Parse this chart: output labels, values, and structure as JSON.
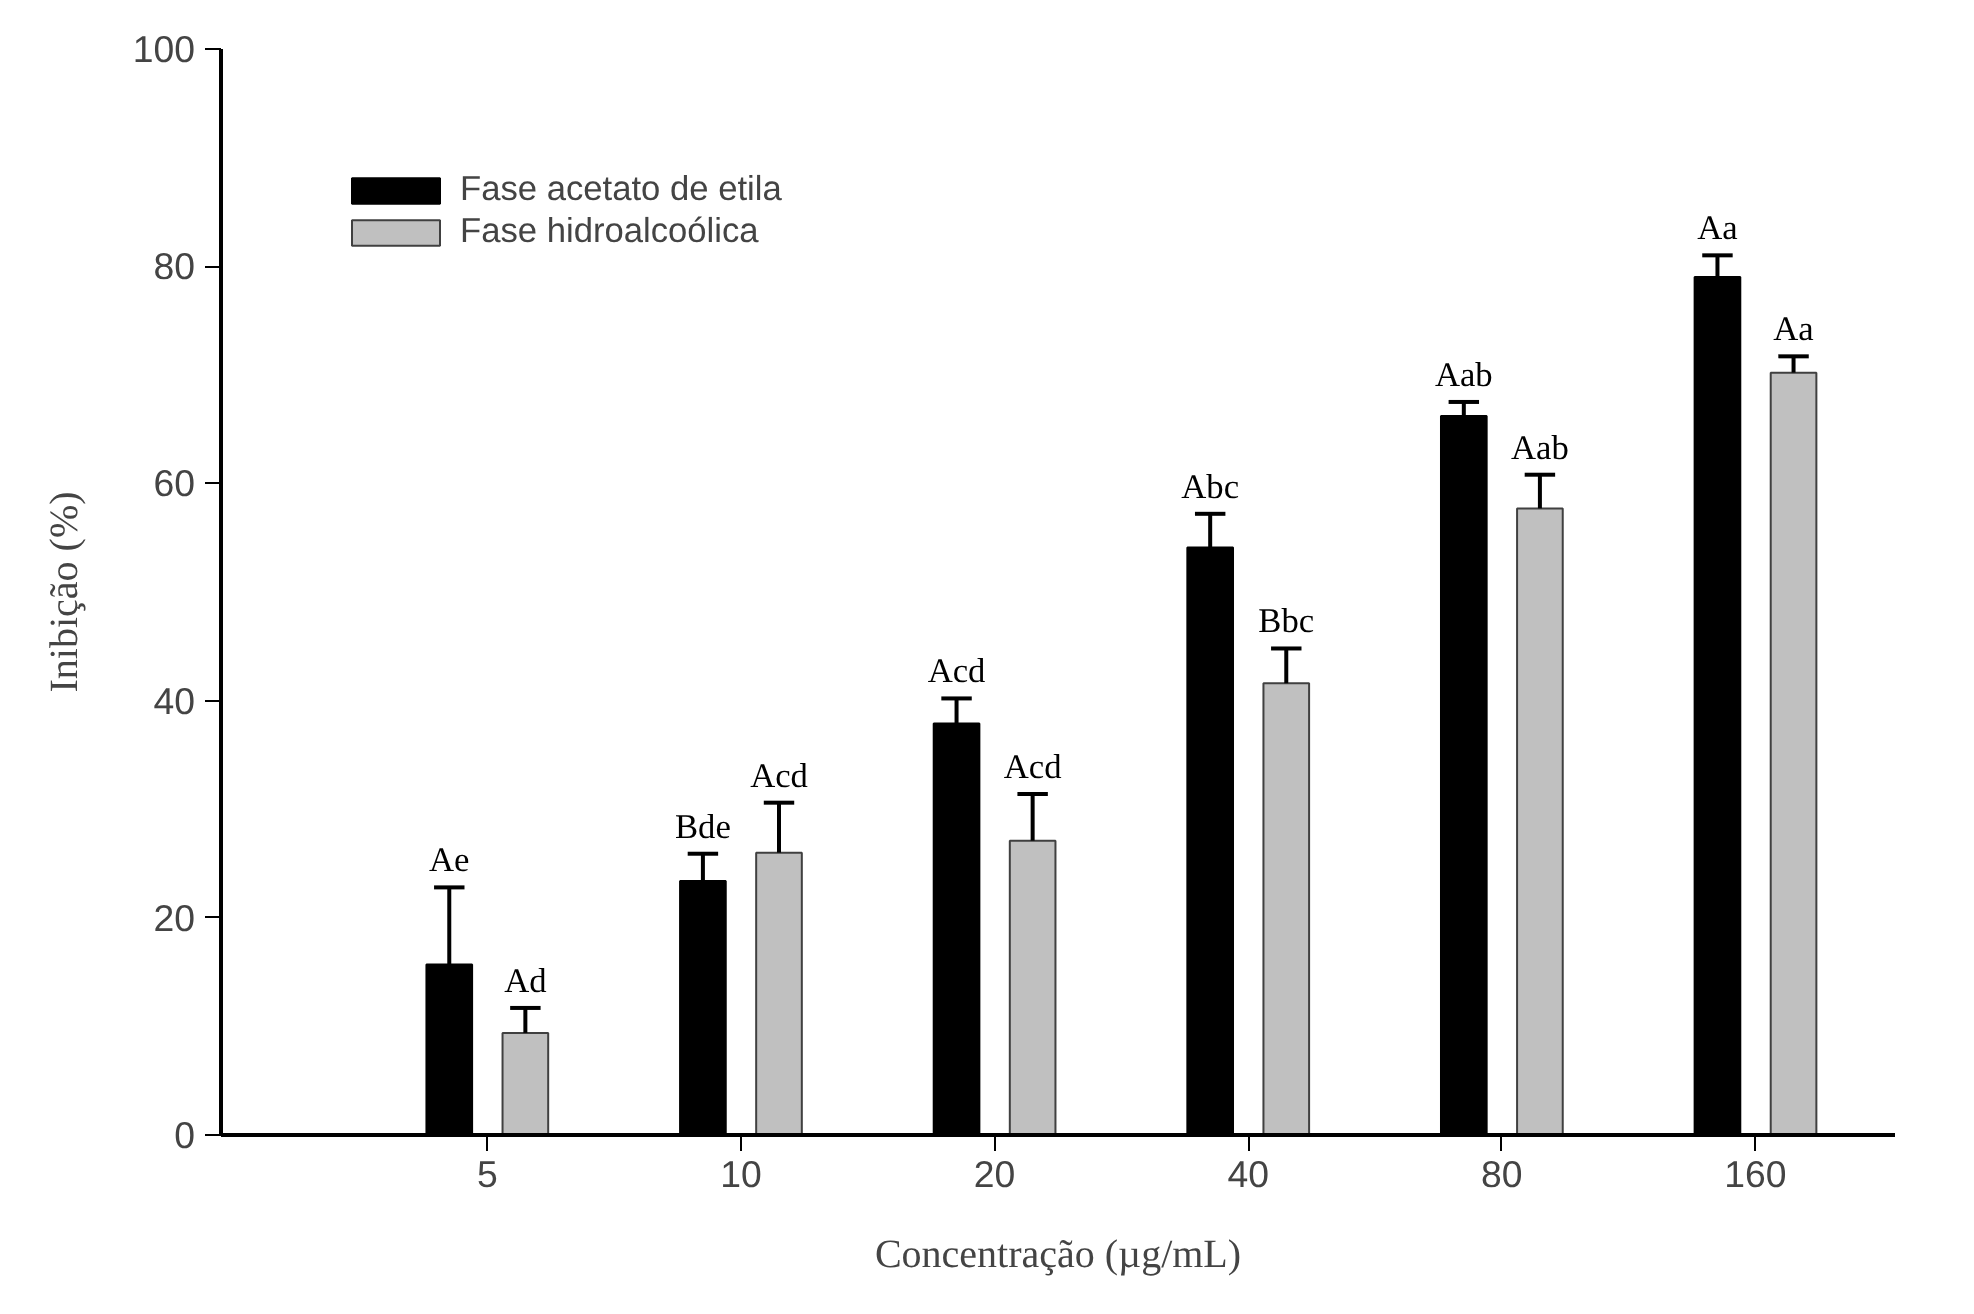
{
  "chart_data": {
    "type": "bar",
    "categories": [
      "5",
      "10",
      "20",
      "40",
      "80",
      "160"
    ],
    "xlabel": "Concentração (µg/mL)",
    "ylabel": "Inibição (%)",
    "ylim": [
      0,
      100
    ],
    "yticks": [
      0,
      20,
      40,
      60,
      80,
      100
    ],
    "grid": false,
    "legend": "top left",
    "series": [
      {
        "name": "Fase acetato de etila",
        "color": "#000000",
        "values": [
          15.7,
          23.4,
          37.9,
          54.1,
          66.2,
          79.0
        ],
        "errors": [
          [
            15.7,
            22.8
          ],
          [
            23.4,
            25.9
          ],
          [
            37.9,
            40.2
          ],
          [
            54.1,
            57.2
          ],
          [
            66.2,
            67.5
          ],
          [
            79.0,
            81.0
          ]
        ],
        "value_labels": [
          "Ae",
          "Bde",
          "Acd",
          "Abc",
          "Aab",
          "Aa"
        ]
      },
      {
        "name": "Fase hidroalcoólica",
        "color": "#c0c0c0",
        "values": [
          9.4,
          26.0,
          27.1,
          41.6,
          57.7,
          70.2
        ],
        "errors": [
          [
            9.4,
            11.7
          ],
          [
            26.0,
            30.6
          ],
          [
            27.1,
            31.4
          ],
          [
            41.6,
            44.8
          ],
          [
            57.7,
            60.8
          ],
          [
            70.2,
            71.7
          ]
        ],
        "value_labels": [
          "Ad",
          "Acd",
          "Acd",
          "Bbc",
          "Aab",
          "Aa"
        ]
      }
    ]
  }
}
